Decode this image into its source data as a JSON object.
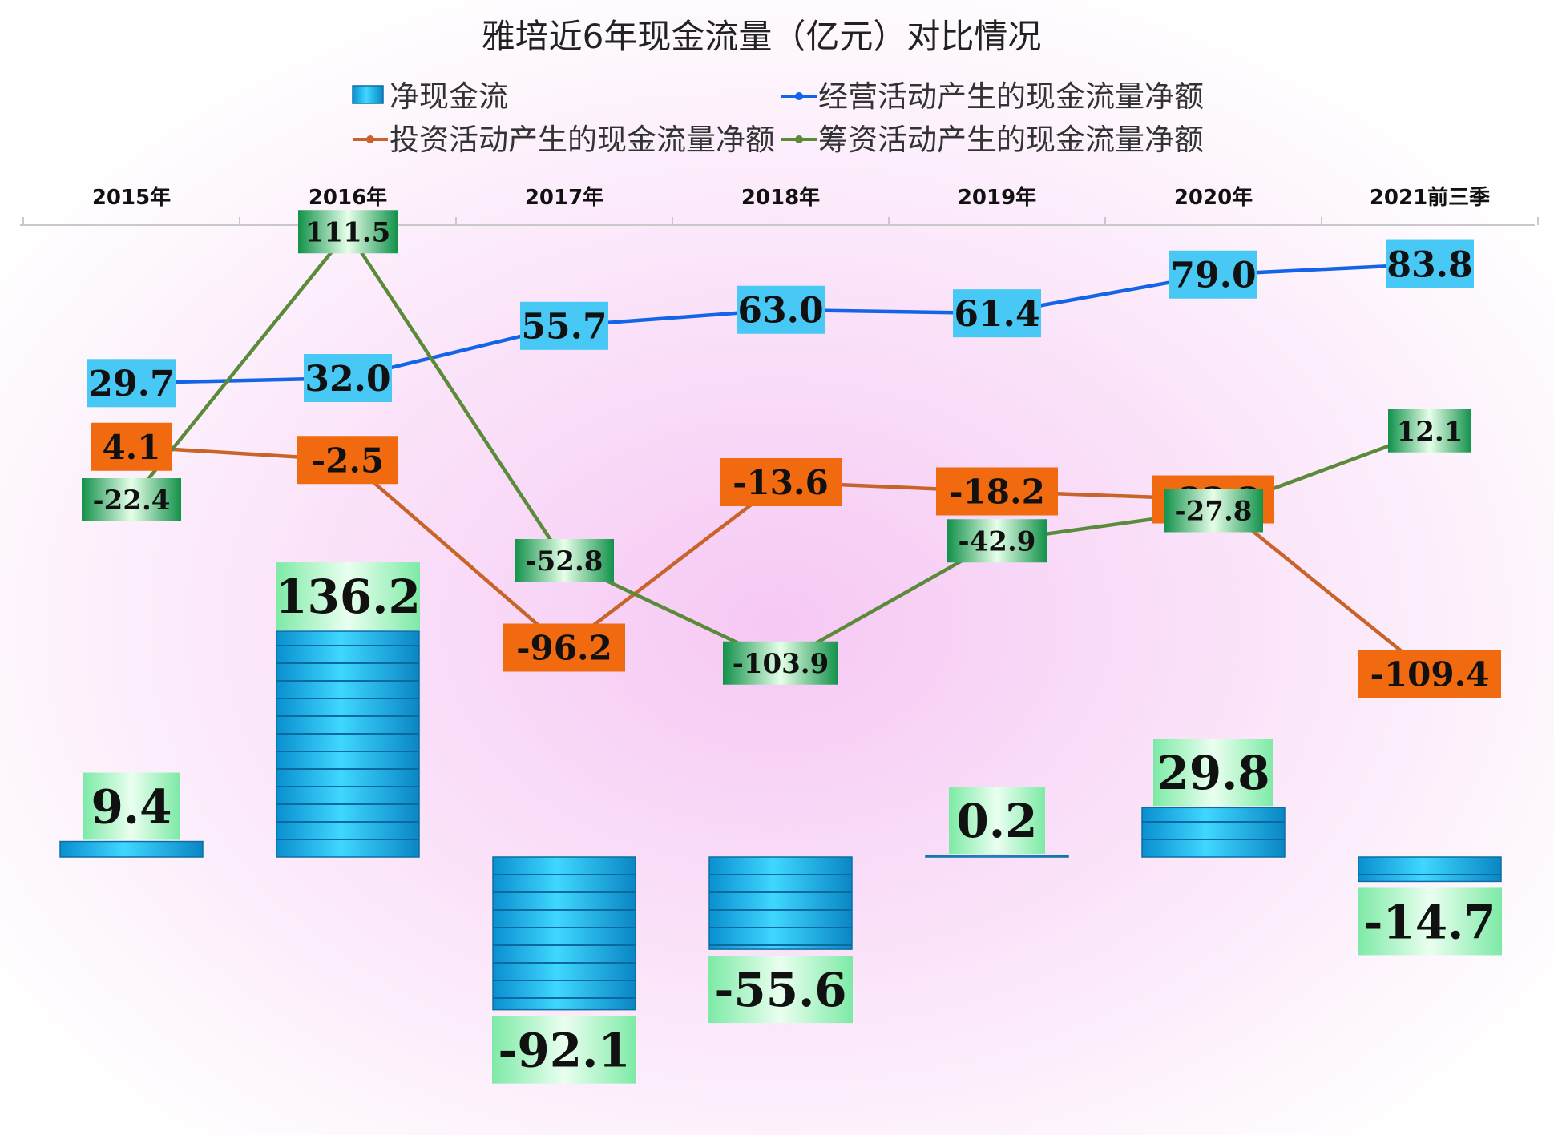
{
  "chart_data": {
    "type": "bar",
    "title": "雅培近6年现金流量（亿元）对比情况",
    "categories": [
      "2015年",
      "2016年",
      "2017年",
      "2018年",
      "2019年",
      "2020年",
      "2021前三季"
    ],
    "series": [
      {
        "name": "净现金流",
        "kind": "bar",
        "color": "#19b6f0",
        "values": [
          9.4,
          136.2,
          -92.1,
          -55.6,
          0.2,
          29.8,
          -14.7
        ]
      },
      {
        "name": "经营活动产生的现金流量净额",
        "kind": "line",
        "color": "#1464e8",
        "values": [
          29.7,
          32.0,
          55.7,
          63.0,
          61.4,
          79.0,
          83.8
        ]
      },
      {
        "name": "投资活动产生的现金流量净额",
        "kind": "line",
        "color": "#c8642a",
        "values": [
          4.1,
          -2.5,
          -96.2,
          -13.6,
          -18.2,
          -22.2,
          -109.4
        ]
      },
      {
        "name": "筹资活动产生的现金流量净额",
        "kind": "line",
        "color": "#5a8a3a",
        "values": [
          -22.4,
          111.5,
          -52.8,
          -103.9,
          -42.9,
          -27.8,
          12.1
        ]
      }
    ],
    "label_colors": {
      "bar": "#a9f0c4",
      "operating": "#48c8f4",
      "investing": "#f26a0f",
      "financing": "#1f9a52"
    },
    "legend_position": "top",
    "category_axis_position": "top",
    "grid": false,
    "data_labels": true
  }
}
